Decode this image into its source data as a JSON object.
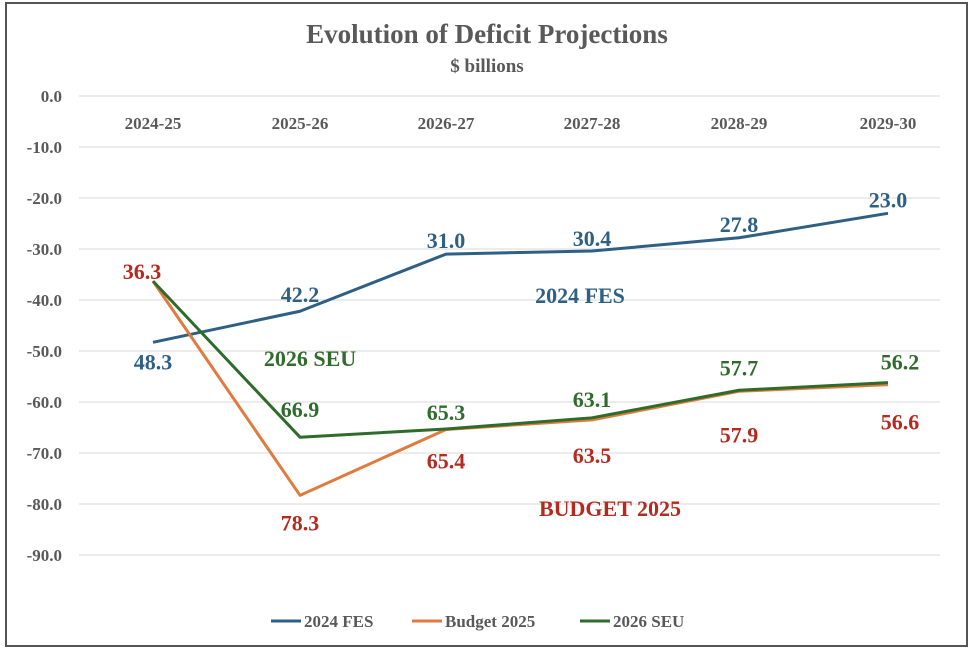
{
  "chart_data": {
    "type": "line",
    "title": "Evolution of Deficit Projections",
    "subtitle": "$ billions",
    "categories": [
      "2024-25",
      "2025-26",
      "2026-27",
      "2027-28",
      "2028-29",
      "2029-30"
    ],
    "ylim": [
      -90,
      0
    ],
    "yticks": [
      "0.0",
      "-10.0",
      "-20.0",
      "-30.0",
      "-40.0",
      "-50.0",
      "-60.0",
      "-70.0",
      "-80.0",
      "-90.0"
    ],
    "grid": true,
    "legend_position": "bottom",
    "series": [
      {
        "name": "2024 FES",
        "color": "#2e5f84",
        "label_color": "#2e5f84",
        "values": [
          -48.3,
          -42.2,
          -31.0,
          -30.4,
          -27.8,
          -23.0
        ],
        "labels": [
          "48.3",
          "42.2",
          "31.0",
          "30.4",
          "27.8",
          "23.0"
        ],
        "annotation": "2024 FES"
      },
      {
        "name": "Budget 2025",
        "color": "#e07b3f",
        "label_color": "#b52a1f",
        "values": [
          -36.3,
          -78.3,
          -65.4,
          -63.5,
          -57.9,
          -56.6
        ],
        "labels": [
          "36.3",
          "78.3",
          "65.4",
          "63.5",
          "57.9",
          "56.6"
        ],
        "annotation": "BUDGET 2025"
      },
      {
        "name": "2026 SEU",
        "color": "#2f6b2a",
        "label_color": "#2f6b2a",
        "values": [
          -36.3,
          -66.9,
          -65.3,
          -63.1,
          -57.7,
          -56.2
        ],
        "labels": [
          "",
          "66.9",
          "65.3",
          "63.1",
          "57.7",
          "56.2"
        ],
        "annotation": "2026 SEU"
      }
    ]
  }
}
